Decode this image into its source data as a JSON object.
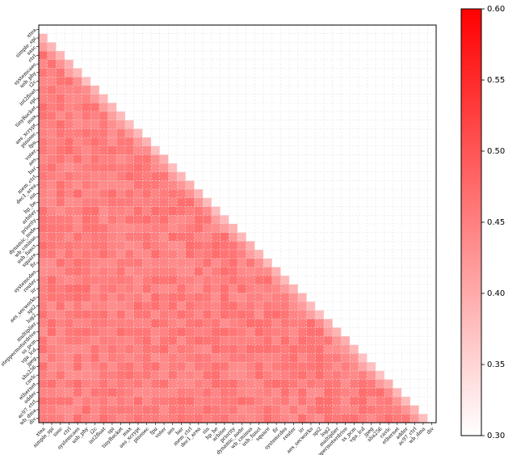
{
  "chart_data": {
    "type": "heatmap",
    "title": "",
    "xlabel": "",
    "ylabel": "",
    "layout": "lower-triangle",
    "grid": true,
    "labels": [
      "xtea",
      "simple_spi",
      "sasc",
      "ctrl",
      "systemcaes",
      "usb_phy",
      "i2c",
      "int2float",
      "spi",
      "tinyRocket",
      "max",
      "aes_xcrypt",
      "pinosec",
      "fpu",
      "voter",
      "aes",
      "bar",
      "mem_ctrl",
      "dec1_area",
      "sin",
      "hp_be",
      "arbiter",
      "priority",
      "dynamic_node",
      "wb_cminus",
      "usb_funct",
      "square",
      "fir",
      "systemcdes",
      "router",
      "iir",
      "aes_secworks",
      "spi2",
      "log2",
      "multiplier",
      "steppermotordrive",
      "ss_pcm",
      "vga_lcd",
      "jpeg",
      "sha256",
      "cavlc",
      "ethernet",
      "adder",
      "ac97_ctrl",
      "wb_dma",
      "div"
    ],
    "colorbar": {
      "vmin": 0.3,
      "vmax": 0.6,
      "ticks": [
        "0.30",
        "0.35",
        "0.40",
        "0.45",
        "0.50",
        "0.55",
        "0.60"
      ],
      "color_low": "#ffffff",
      "color_high": "#ff0000"
    },
    "value_summary": {
      "diagonal": 0.3,
      "typical_min": 0.4,
      "typical_max": 0.49
    }
  }
}
